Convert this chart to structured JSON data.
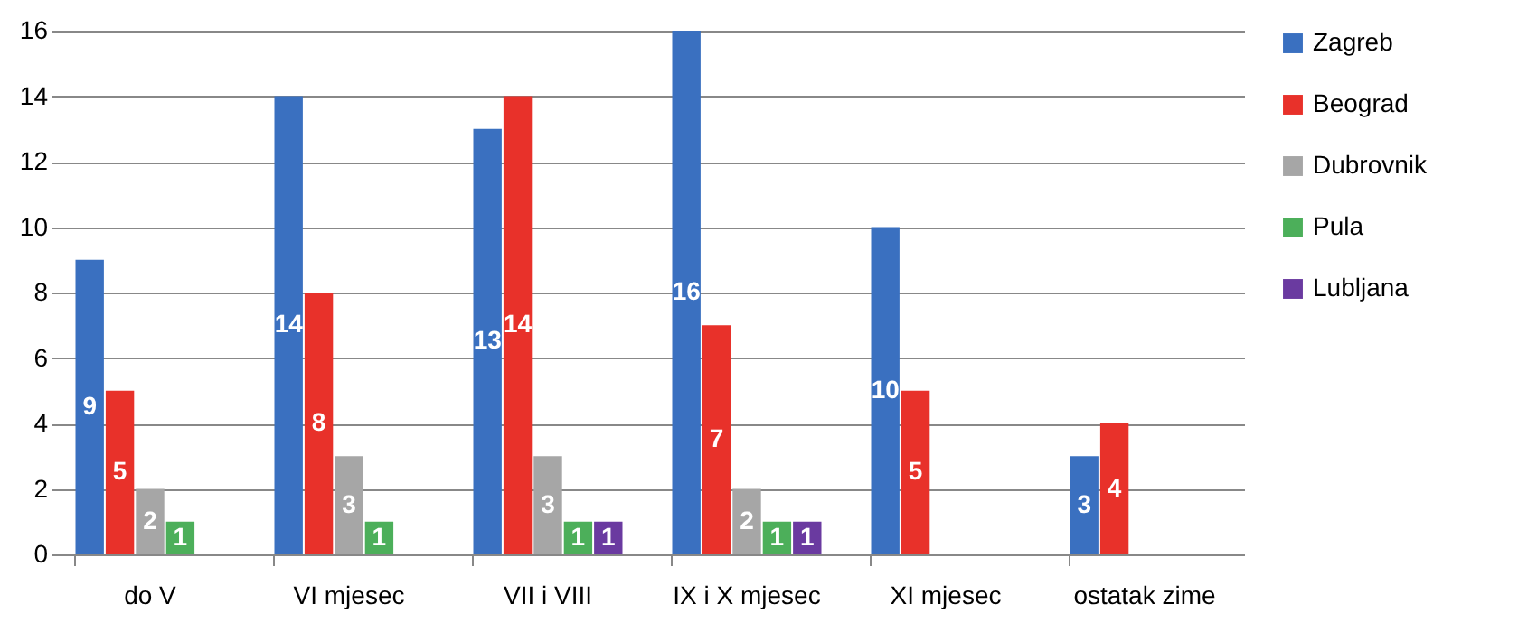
{
  "chart_data": {
    "type": "bar",
    "categories": [
      "do V",
      "VI mjesec",
      "VII i VIII",
      "IX i X mjesec",
      "XI mjesec",
      "ostatak zime"
    ],
    "series": [
      {
        "name": "Zagreb",
        "color": "#3a70c0",
        "values": [
          9,
          14,
          13,
          16,
          10,
          3
        ]
      },
      {
        "name": "Beograd",
        "color": "#e8312a",
        "values": [
          5,
          8,
          14,
          7,
          5,
          4
        ]
      },
      {
        "name": "Dubrovnik",
        "color": "#a6a6a6",
        "values": [
          2,
          3,
          3,
          2,
          null,
          null
        ]
      },
      {
        "name": "Pula",
        "color": "#4caf5a",
        "values": [
          1,
          1,
          1,
          1,
          null,
          null
        ]
      },
      {
        "name": "Lubljana",
        "color": "#6a3aa0",
        "values": [
          null,
          null,
          1,
          1,
          null,
          null
        ]
      }
    ],
    "ylim": [
      0,
      16
    ],
    "yticks": [
      0,
      2,
      4,
      6,
      8,
      10,
      12,
      14,
      16
    ],
    "grid": "y",
    "legend": "right",
    "data_labels": true
  }
}
